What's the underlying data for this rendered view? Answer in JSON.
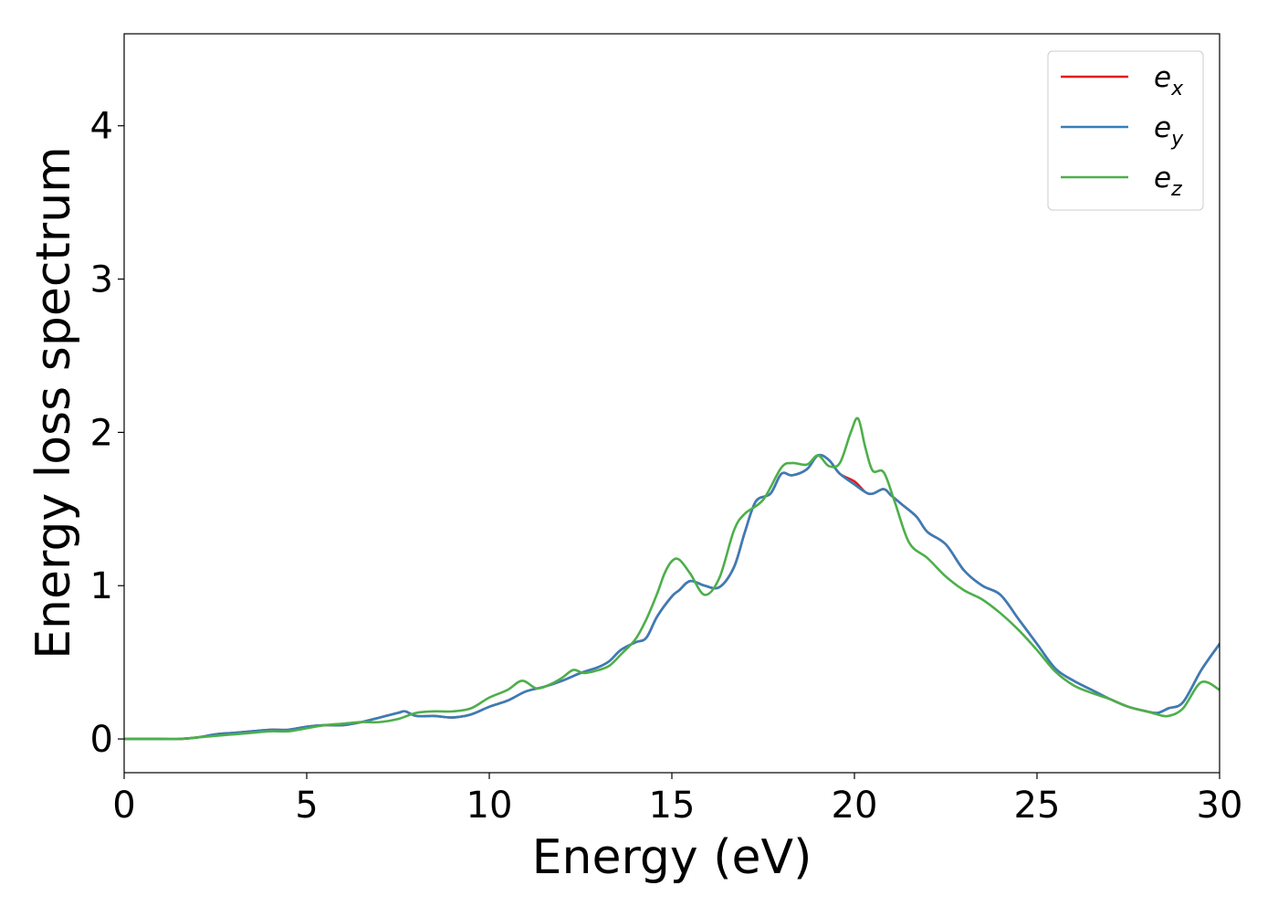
{
  "chart_data": {
    "type": "line",
    "title": "",
    "xlabel": "Energy (eV)",
    "ylabel": "Energy loss spectrum",
    "xlim": [
      0,
      30
    ],
    "ylim": [
      -0.22,
      4.6
    ],
    "xticks": [
      0,
      5,
      10,
      15,
      20,
      25,
      30
    ],
    "yticks": [
      0,
      1,
      2,
      3,
      4
    ],
    "xtick_labels": [
      "0",
      "5",
      "10",
      "15",
      "20",
      "25",
      "30"
    ],
    "ytick_labels": [
      "0",
      "1",
      "2",
      "3",
      "4"
    ],
    "grid": false,
    "legend_position": "top-right",
    "series": [
      {
        "name": "e_x",
        "legend_base": "e",
        "legend_sub": "x",
        "color": "#e41a1c",
        "x": [
          0,
          1,
          1.5,
          2,
          2.5,
          3,
          3.5,
          4,
          4.5,
          5,
          5.5,
          6,
          6.5,
          7,
          7.5,
          7.7,
          8,
          8.5,
          9,
          9.5,
          10,
          10.5,
          11,
          11.5,
          12,
          12.5,
          13,
          13.3,
          13.6,
          14,
          14.3,
          14.6,
          15,
          15.2,
          15.5,
          15.9,
          16.3,
          16.7,
          17,
          17.3,
          17.7,
          18,
          18.3,
          18.7,
          19,
          19.3,
          19.6,
          20,
          20.3,
          20.5,
          20.8,
          21,
          21.3,
          21.7,
          22,
          22.5,
          23,
          23.5,
          24,
          24.5,
          25,
          25.5,
          26,
          26.5,
          27,
          27.5,
          28,
          28.3,
          28.6,
          29,
          29.5,
          30
        ],
        "values": [
          0,
          0,
          0,
          0.01,
          0.03,
          0.04,
          0.05,
          0.06,
          0.06,
          0.08,
          0.09,
          0.09,
          0.11,
          0.14,
          0.17,
          0.18,
          0.15,
          0.15,
          0.14,
          0.16,
          0.21,
          0.25,
          0.31,
          0.34,
          0.38,
          0.43,
          0.47,
          0.51,
          0.58,
          0.63,
          0.66,
          0.8,
          0.93,
          0.97,
          1.03,
          1.0,
          0.99,
          1.12,
          1.35,
          1.55,
          1.6,
          1.73,
          1.72,
          1.76,
          1.85,
          1.82,
          1.73,
          1.68,
          1.61,
          1.6,
          1.63,
          1.59,
          1.53,
          1.45,
          1.35,
          1.27,
          1.1,
          1.0,
          0.94,
          0.78,
          0.62,
          0.46,
          0.38,
          0.32,
          0.26,
          0.21,
          0.18,
          0.17,
          0.2,
          0.24,
          0.45,
          0.62
        ]
      },
      {
        "name": "e_y",
        "legend_base": "e",
        "legend_sub": "y",
        "color": "#377eb8",
        "x": [
          0,
          1,
          1.5,
          2,
          2.5,
          3,
          3.5,
          4,
          4.5,
          5,
          5.5,
          6,
          6.5,
          7,
          7.5,
          7.7,
          8,
          8.5,
          9,
          9.5,
          10,
          10.5,
          11,
          11.5,
          12,
          12.5,
          13,
          13.3,
          13.6,
          14,
          14.3,
          14.6,
          15,
          15.2,
          15.5,
          15.9,
          16.3,
          16.7,
          17,
          17.3,
          17.7,
          18,
          18.3,
          18.7,
          19,
          19.3,
          19.6,
          20,
          20.3,
          20.5,
          20.8,
          21,
          21.3,
          21.7,
          22,
          22.5,
          23,
          23.5,
          24,
          24.5,
          25,
          25.5,
          26,
          26.5,
          27,
          27.5,
          28,
          28.3,
          28.6,
          29,
          29.5,
          30
        ],
        "values": [
          0,
          0,
          0,
          0.01,
          0.03,
          0.04,
          0.05,
          0.06,
          0.06,
          0.08,
          0.09,
          0.09,
          0.11,
          0.14,
          0.17,
          0.18,
          0.15,
          0.15,
          0.14,
          0.16,
          0.21,
          0.25,
          0.31,
          0.34,
          0.38,
          0.43,
          0.47,
          0.51,
          0.58,
          0.63,
          0.66,
          0.8,
          0.93,
          0.97,
          1.03,
          1.0,
          0.99,
          1.12,
          1.35,
          1.55,
          1.6,
          1.73,
          1.72,
          1.76,
          1.85,
          1.82,
          1.73,
          1.66,
          1.61,
          1.6,
          1.63,
          1.59,
          1.53,
          1.45,
          1.35,
          1.27,
          1.1,
          1.0,
          0.94,
          0.78,
          0.62,
          0.46,
          0.38,
          0.32,
          0.26,
          0.21,
          0.18,
          0.17,
          0.2,
          0.24,
          0.45,
          0.62
        ]
      },
      {
        "name": "e_z",
        "legend_base": "e",
        "legend_sub": "z",
        "color": "#4daf4a",
        "x": [
          0,
          1,
          1.5,
          2,
          2.5,
          3,
          3.5,
          4,
          4.5,
          5,
          5.5,
          6,
          6.5,
          7,
          7.5,
          8,
          8.5,
          9,
          9.5,
          10,
          10.5,
          10.9,
          11.3,
          11.7,
          12,
          12.3,
          12.6,
          13,
          13.3,
          13.6,
          14,
          14.3,
          14.6,
          14.8,
          15,
          15.2,
          15.5,
          15.9,
          16.3,
          16.7,
          17,
          17.5,
          18,
          18.3,
          18.7,
          19,
          19.3,
          19.6,
          19.9,
          20.1,
          20.3,
          20.5,
          20.8,
          21.1,
          21.5,
          22,
          22.5,
          23,
          23.5,
          24,
          24.5,
          25,
          25.5,
          26,
          26.5,
          27,
          27.5,
          28,
          28.3,
          28.6,
          29,
          29.5,
          30
        ],
        "values": [
          0,
          0,
          0,
          0.01,
          0.02,
          0.03,
          0.04,
          0.05,
          0.05,
          0.07,
          0.09,
          0.1,
          0.11,
          0.11,
          0.13,
          0.17,
          0.18,
          0.18,
          0.2,
          0.27,
          0.32,
          0.38,
          0.33,
          0.36,
          0.4,
          0.45,
          0.43,
          0.45,
          0.48,
          0.55,
          0.65,
          0.78,
          0.95,
          1.08,
          1.16,
          1.17,
          1.08,
          0.94,
          1.05,
          1.36,
          1.47,
          1.56,
          1.77,
          1.8,
          1.79,
          1.85,
          1.78,
          1.8,
          2.0,
          2.09,
          1.9,
          1.75,
          1.74,
          1.55,
          1.28,
          1.18,
          1.06,
          0.97,
          0.91,
          0.82,
          0.71,
          0.58,
          0.44,
          0.35,
          0.3,
          0.26,
          0.21,
          0.18,
          0.16,
          0.15,
          0.2,
          0.37,
          0.32
        ]
      }
    ]
  }
}
